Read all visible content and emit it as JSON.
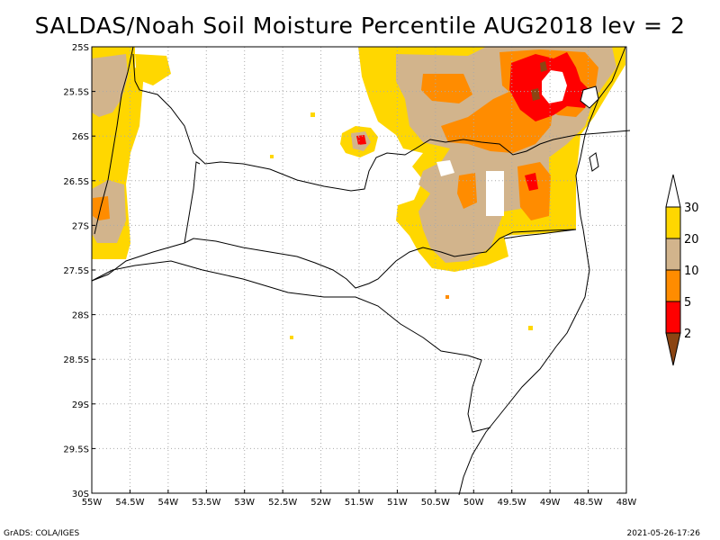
{
  "title": "SALDAS/Noah Soil Moisture Percentile AUG2018 lev = 2",
  "footer": {
    "credit": "GrADS: COLA/IGES",
    "timestamp": "2021-05-26-17:26"
  },
  "axes": {
    "lon_labels": [
      "55W",
      "54.5W",
      "54W",
      "53.5W",
      "53W",
      "52.5W",
      "52W",
      "51.5W",
      "51W",
      "50.5W",
      "50W",
      "49.5W",
      "49W",
      "48.5W",
      "48W"
    ],
    "lat_labels": [
      "25S",
      "25.5S",
      "26S",
      "26.5S",
      "27S",
      "27.5S",
      "28S",
      "28.5S",
      "29S",
      "29.5S",
      "30S"
    ]
  },
  "colorbar": {
    "thresholds": [
      "2",
      "5",
      "10",
      "20",
      "30"
    ],
    "colors": {
      "below_2": "#8b4513",
      "2_5": "#ff0000",
      "5_10": "#ff8c00",
      "10_20": "#d2b48c",
      "20_30": "#ffd700",
      "above_30": "#ffffff"
    }
  },
  "colors": {
    "lt2": "#8b4513",
    "r2_5": "#ff0000",
    "r5_10": "#ff8c00",
    "r10_20": "#d2b48c",
    "r20_30": "#ffd700",
    "boundary": "#000000",
    "grid": "#aaaaaa"
  }
}
